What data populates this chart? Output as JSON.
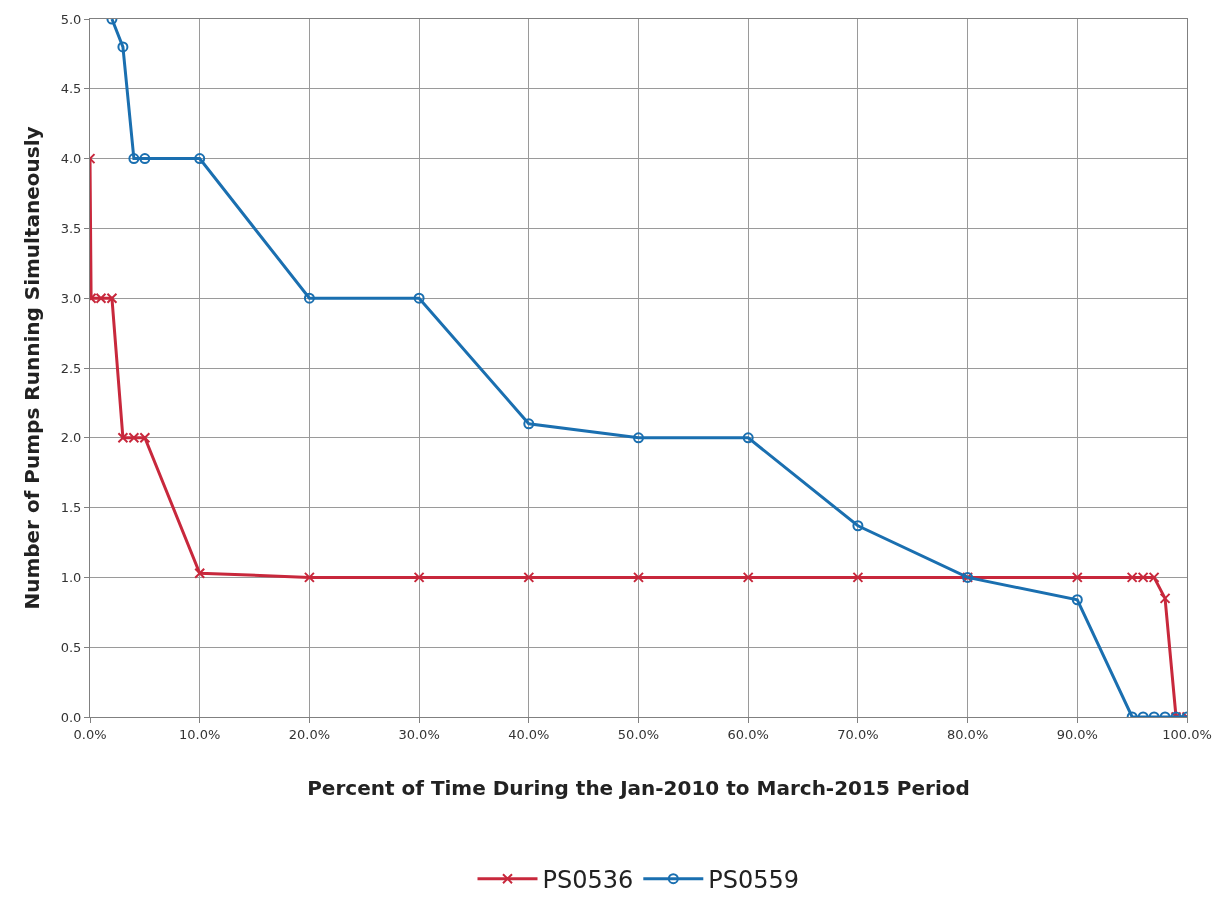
{
  "chart_data": {
    "type": "line",
    "xlabel": "Percent of Time During the Jan-2010 to March-2015 Period",
    "ylabel": "Number of Pumps Running Simultaneously",
    "xlim": [
      0,
      100
    ],
    "xticks": [
      {
        "value": 0,
        "label": "0.0%"
      },
      {
        "value": 10,
        "label": "10.0%"
      },
      {
        "value": 20,
        "label": "20.0%"
      },
      {
        "value": 30,
        "label": "30.0%"
      },
      {
        "value": 40,
        "label": "40.0%"
      },
      {
        "value": 50,
        "label": "50.0%"
      },
      {
        "value": 60,
        "label": "60.0%"
      },
      {
        "value": 70,
        "label": "70.0%"
      },
      {
        "value": 80,
        "label": "80.0%"
      },
      {
        "value": 90,
        "label": "90.0%"
      },
      {
        "value": 100,
        "label": "100.0%"
      }
    ],
    "ylim": [
      0,
      5
    ],
    "yticks": [
      {
        "value": 0,
        "label": "0.0"
      },
      {
        "value": 0.5,
        "label": "0.5"
      },
      {
        "value": 1,
        "label": "1.0"
      },
      {
        "value": 1.5,
        "label": "1.5"
      },
      {
        "value": 2,
        "label": "2.0"
      },
      {
        "value": 2.5,
        "label": "2.5"
      },
      {
        "value": 3,
        "label": "3.0"
      },
      {
        "value": 3.5,
        "label": "3.5"
      },
      {
        "value": 4,
        "label": "4.0"
      },
      {
        "value": 4.5,
        "label": "4.5"
      },
      {
        "value": 5,
        "label": "5.0"
      }
    ],
    "grid": true,
    "legend": "bottom",
    "line_style": "solid",
    "series": [
      {
        "name": "PS0536",
        "color": "#c8283c",
        "marker": "cross",
        "x": [
          0,
          0.1,
          1,
          2,
          3,
          4,
          5,
          10,
          20,
          30,
          40,
          50,
          60,
          70,
          80,
          90,
          95,
          96,
          97,
          98,
          99,
          100
        ],
        "values": [
          4.0,
          3.0,
          3.0,
          3.0,
          2.0,
          2.0,
          2.0,
          1.03,
          1.0,
          1.0,
          1.0,
          1.0,
          1.0,
          1.0,
          1.0,
          1.0,
          1.0,
          1.0,
          1.0,
          0.85,
          0,
          0
        ]
      },
      {
        "name": "PS0559",
        "color": "#1a6fb0",
        "marker": "circle",
        "x": [
          2,
          3,
          4,
          5,
          10,
          20,
          30,
          40,
          50,
          60,
          70,
          80,
          90,
          95,
          96,
          97,
          98,
          99,
          100
        ],
        "values": [
          5.0,
          4.8,
          4.0,
          4.0,
          4.0,
          3.0,
          3.0,
          2.1,
          2.0,
          2.0,
          1.37,
          1.0,
          0.84,
          0,
          0,
          0,
          0,
          0,
          0
        ]
      }
    ]
  }
}
